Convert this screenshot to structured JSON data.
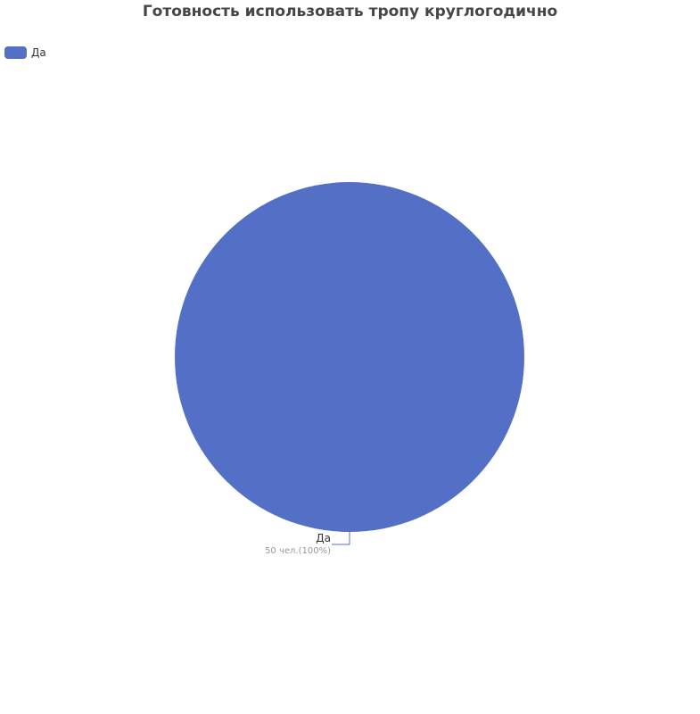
{
  "chart_data": {
    "type": "pie",
    "title": "Готовность использовать тропу круглогодично",
    "legend_position": "top-left",
    "slices": [
      {
        "name": "Да",
        "value": 50,
        "label": "Да",
        "detail": "50 чел.(100%)",
        "color": "#5470c6"
      }
    ]
  }
}
